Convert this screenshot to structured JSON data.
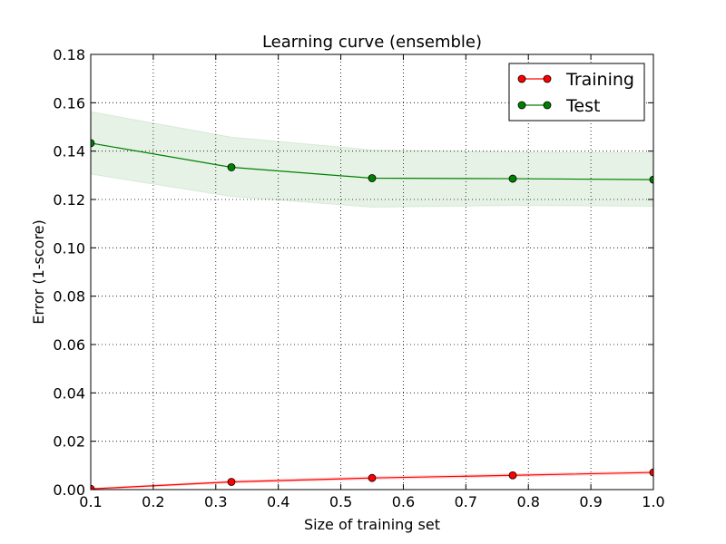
{
  "chart_data": {
    "type": "line",
    "title": "Learning curve (ensemble)",
    "xlabel": "Size of training set",
    "ylabel": "Error (1-score)",
    "xlim": [
      0.1,
      1.0
    ],
    "ylim": [
      0.0,
      0.18
    ],
    "x_ticks": [
      "0.1",
      "0.2",
      "0.3",
      "0.4",
      "0.5",
      "0.6",
      "0.7",
      "0.8",
      "0.9",
      "1.0"
    ],
    "y_ticks": [
      "0.00",
      "0.02",
      "0.04",
      "0.06",
      "0.08",
      "0.10",
      "0.12",
      "0.14",
      "0.16",
      "0.18"
    ],
    "grid": true,
    "legend_position": "top-right",
    "x": [
      0.1,
      0.325,
      0.55,
      0.775,
      1.0
    ],
    "series": [
      {
        "name": "Training",
        "color": "#ff0000",
        "values": [
          0.0003,
          0.0032,
          0.0048,
          0.0059,
          0.0071
        ],
        "band_lower": [
          0.0,
          0.0027,
          0.0042,
          0.0053,
          0.0065
        ],
        "band_upper": [
          0.0006,
          0.0037,
          0.0054,
          0.0065,
          0.0077
        ]
      },
      {
        "name": "Test",
        "color": "#008000",
        "values": [
          0.1433,
          0.1333,
          0.1288,
          0.1286,
          0.1282
        ],
        "band_lower": [
          0.1305,
          0.1212,
          0.1168,
          0.1175,
          0.1172
        ],
        "band_upper": [
          0.1563,
          0.1458,
          0.1405,
          0.1396,
          0.1393
        ]
      }
    ]
  }
}
